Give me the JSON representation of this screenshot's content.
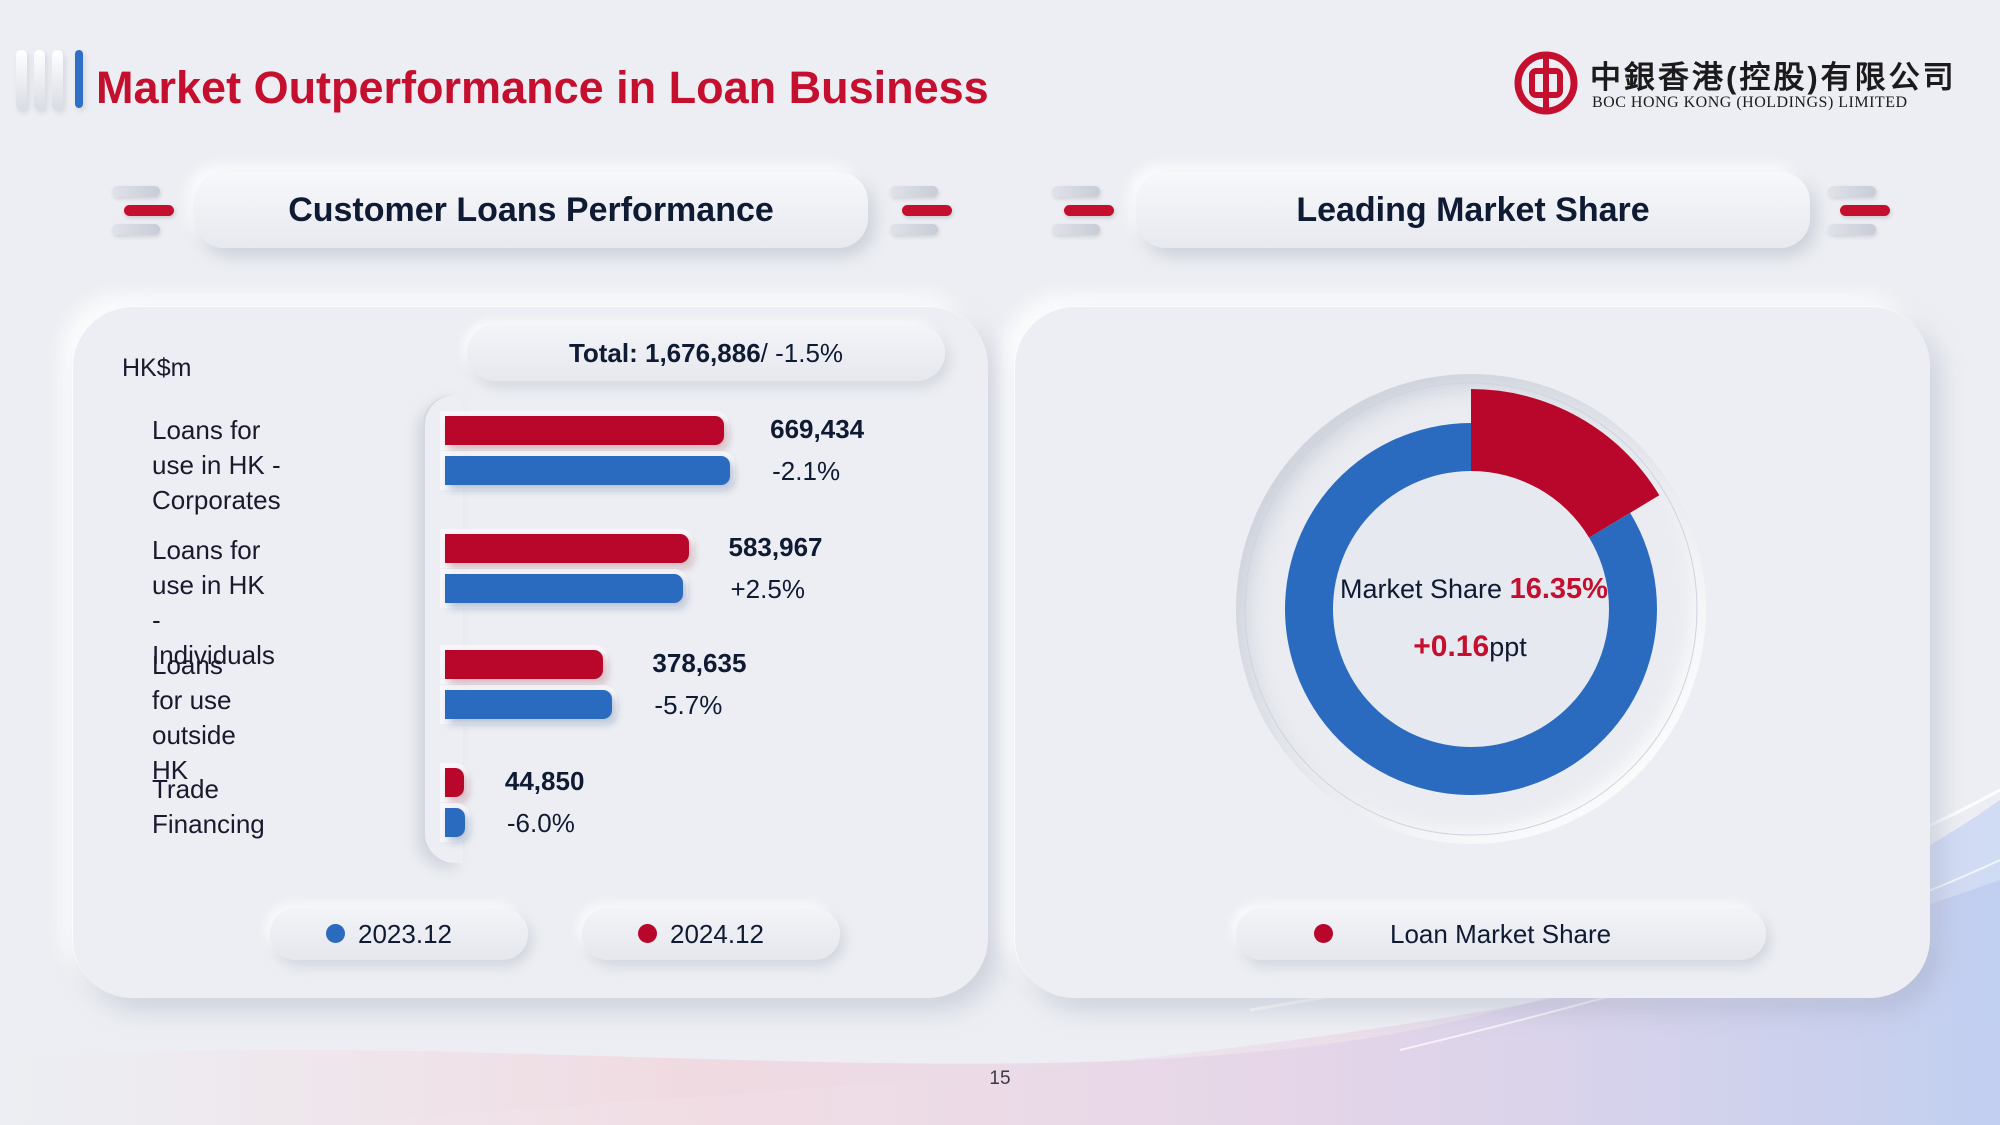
{
  "header": {
    "title": "Market Outperformance in Loan Business",
    "logo_cn": "中銀香港(控股)有限公司",
    "logo_en": "BOC HONG KONG (HOLDINGS) LIMITED"
  },
  "colors": {
    "brand_red": "#c4102e",
    "bar_red": "#b8072a",
    "bar_blue": "#2b6bbf"
  },
  "left_panel": {
    "heading": "Customer Loans Performance",
    "unit": "HK$m",
    "total_label": "Total: 1,676,886",
    "total_change": " / -1.5%",
    "legend": [
      {
        "label": "2023.12",
        "color": "#2b6bbf"
      },
      {
        "label": "2024.12",
        "color": "#b8072a"
      }
    ]
  },
  "right_panel": {
    "heading": "Leading Market Share",
    "center_prefix": "Market Share ",
    "center_value": "16.35%",
    "center_change_value": "+0.16",
    "center_change_unit": "ppt",
    "legend_label": "Loan Market Share"
  },
  "page_number": "15",
  "chart_data": [
    {
      "type": "bar",
      "orientation": "horizontal",
      "unit": "HK$m",
      "categories": [
        "Loans for use in HK -\nCorporates",
        "Loans for use in HK -\nIndividuals",
        "Loans for use\noutside HK",
        "Trade\nFinancing"
      ],
      "series": [
        {
          "name": "2024.12",
          "color": "#b8072a",
          "values": [
            669434,
            583967,
            378635,
            44850
          ]
        },
        {
          "name": "2023.12",
          "color": "#2b6bbf",
          "values": [
            683800,
            569700,
            401500,
            47700
          ]
        }
      ],
      "value_labels": [
        "669,434",
        "583,967",
        "378,635",
        "44,850"
      ],
      "change_labels": [
        "-2.1%",
        "+2.5%",
        "-5.7%",
        "-6.0%"
      ],
      "legend_placement": "bottom",
      "grid": false
    },
    {
      "type": "pie",
      "variant": "donut",
      "slices": [
        {
          "name": "Loan Market Share",
          "value": 16.35,
          "color": "#b8072a"
        },
        {
          "name": "",
          "value": 83.65,
          "color": "#2b6bbf"
        }
      ],
      "legend_placement": "bottom"
    }
  ]
}
